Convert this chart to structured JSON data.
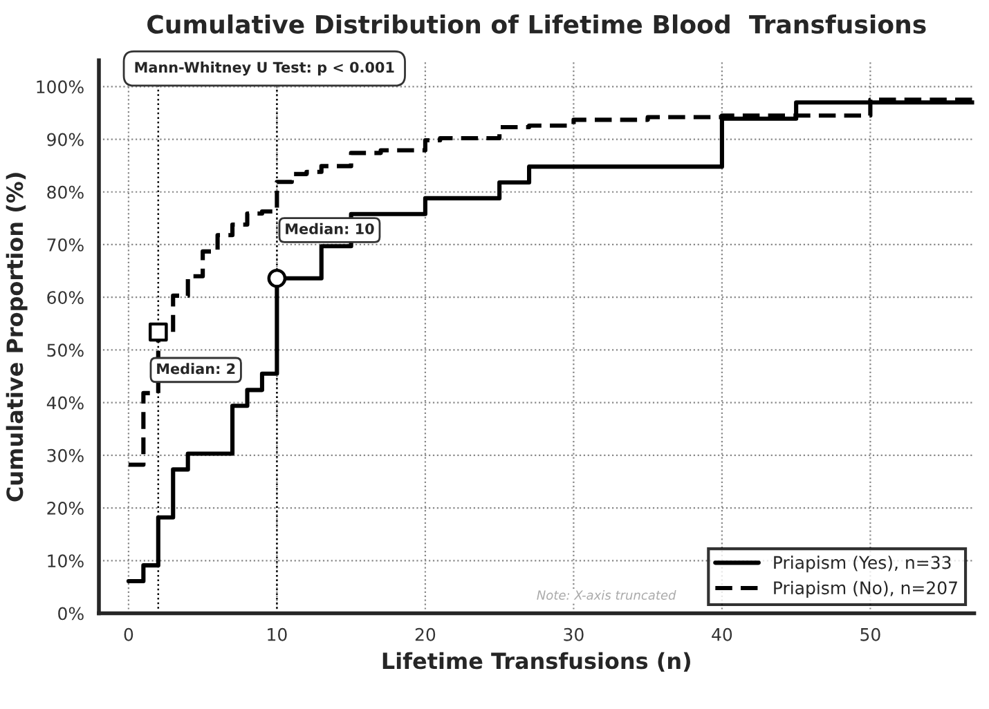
{
  "chart_data": {
    "type": "step",
    "title": "Cumulative Distribution of Lifetime Blood  Transfusions",
    "xlabel": "Lifetime Transfusions (n)",
    "ylabel": "Cumulative Proportion (%)",
    "series": [
      {
        "name": "Priapism (Yes), n=33",
        "color": "#000000",
        "line_style": "solid",
        "x": [
          0,
          1,
          2,
          3,
          4,
          7,
          8,
          9,
          10,
          13,
          15,
          20,
          25,
          27,
          40,
          45,
          57
        ],
        "values": [
          6.1,
          9.1,
          18.2,
          27.3,
          30.3,
          39.4,
          42.4,
          45.5,
          63.6,
          69.7,
          75.8,
          78.8,
          81.8,
          84.8,
          93.9,
          97.0,
          97.0
        ]
      },
      {
        "name": "Priapism (No), n=207",
        "color": "#000000",
        "line_style": "dashed",
        "x": [
          0,
          1,
          2,
          3,
          4,
          5,
          6,
          7,
          8,
          9,
          10,
          11,
          12,
          13,
          15,
          17,
          20,
          21,
          25,
          27,
          30,
          35,
          40,
          50,
          57
        ],
        "values": [
          28.2,
          41.8,
          53.4,
          60.3,
          64.0,
          68.7,
          71.8,
          73.8,
          75.9,
          76.3,
          81.9,
          83.4,
          83.8,
          84.9,
          87.4,
          87.9,
          89.8,
          90.2,
          92.3,
          92.6,
          93.7,
          94.2,
          94.5,
          97.5,
          97.5
        ]
      },
      {
        "type": "scatter",
        "marker": "circle",
        "color": "#000000",
        "x": [
          10
        ],
        "values": [
          63.6
        ]
      },
      {
        "type": "scatter",
        "marker": "square",
        "color": "#000000",
        "x": [
          2
        ],
        "values": [
          53.4
        ]
      }
    ],
    "ref_lines": [
      {
        "axis": "x",
        "value": 2,
        "color": "#000000",
        "line_style": "dotted"
      },
      {
        "axis": "x",
        "value": 10,
        "color": "#000000",
        "line_style": "dotted"
      }
    ],
    "annotations": [
      "Median: 10",
      "Median: 2",
      "Mann-Whitney U Test: p < 0.001",
      "Note: X-axis truncated"
    ],
    "xlim": [
      -2,
      57
    ],
    "ylim": [
      0,
      105
    ],
    "xticks": [
      0,
      10,
      20,
      30,
      40,
      50
    ],
    "yticks": [
      {
        "value": 0,
        "label": "0%"
      },
      {
        "value": 10,
        "label": "10%"
      },
      {
        "value": 20,
        "label": "20%"
      },
      {
        "value": 30,
        "label": "30%"
      },
      {
        "value": 40,
        "label": "40%"
      },
      {
        "value": 50,
        "label": "50%"
      },
      {
        "value": 60,
        "label": "60%"
      },
      {
        "value": 70,
        "label": "70%"
      },
      {
        "value": 80,
        "label": "80%"
      },
      {
        "value": 90,
        "label": "90%"
      },
      {
        "value": 100,
        "label": "100%"
      }
    ],
    "grid": true,
    "legend": "bottom right"
  }
}
